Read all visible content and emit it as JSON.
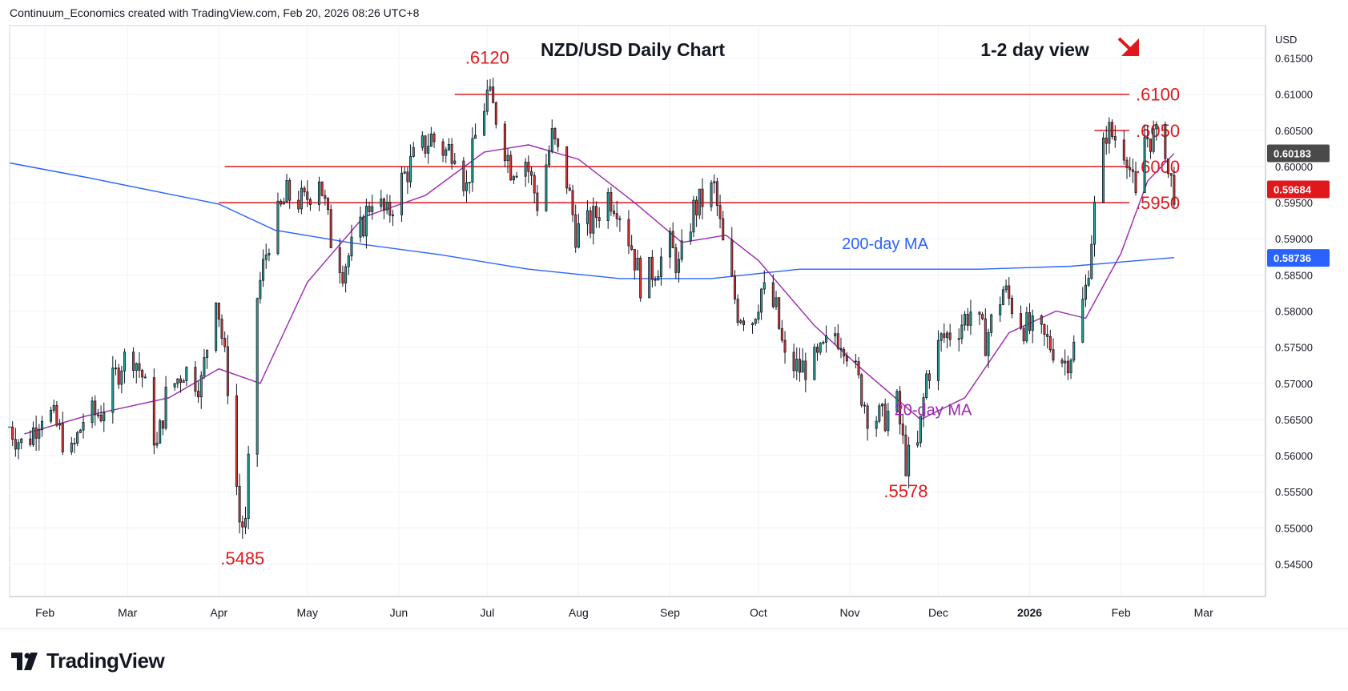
{
  "header": {
    "attribution": "Continuum_Economics created with TradingView.com, Feb 20, 2026 08:26 UTC+8"
  },
  "footer": {
    "brand": "TradingView"
  },
  "icons": {
    "brand_logo": "tradingview-logo-icon",
    "direction_arrow": "down-right-arrow-icon"
  },
  "colors": {
    "up": "#26a69a",
    "down": "#e53935",
    "level": "#e0181b",
    "ma200": "#2962ff",
    "ma20": "#9c27b0",
    "price_badge": "#e0181b",
    "ma_badge": "#2962ff",
    "ma20_badge": "#7b1fa2"
  },
  "chart_data": {
    "type": "candlestick",
    "title": "NZD/USD Daily Chart",
    "view": "1-2 day view",
    "currency": "USD",
    "x_ticks": [
      "Feb",
      "Mar",
      "Apr",
      "May",
      "Jun",
      "Jul",
      "Aug",
      "Sep",
      "Oct",
      "Nov",
      "Dec",
      "2026",
      "Feb",
      "Mar"
    ],
    "x_tick_dates": [
      "2025-02-01",
      "2025-03-01",
      "2025-04-01",
      "2025-05-01",
      "2025-06-01",
      "2025-07-01",
      "2025-08-01",
      "2025-09-01",
      "2025-10-01",
      "2025-11-01",
      "2025-12-01",
      "2026-01-01",
      "2026-02-01",
      "2026-03-01"
    ],
    "x_range": [
      "2025-01-20",
      "2026-03-22"
    ],
    "ylim": [
      0.5405,
      0.6195
    ],
    "y_ticks": [
      "0.61500",
      "0.61000",
      "0.60500",
      "0.60000",
      "0.59500",
      "0.59000",
      "0.58500",
      "0.58000",
      "0.57500",
      "0.57000",
      "0.56500",
      "0.56000",
      "0.55500",
      "0.55000",
      "0.54500"
    ],
    "levels": [
      {
        "label": ".6100",
        "value": 0.61,
        "from": "2025-06-20"
      },
      {
        "label": ".6050",
        "value": 0.605,
        "from": "2026-01-23"
      },
      {
        "label": ".6000",
        "value": 0.6,
        "from": "2025-04-03"
      },
      {
        "label": ".5950",
        "value": 0.595,
        "from": "2025-04-01"
      }
    ],
    "annotations": [
      {
        "label": ".6120",
        "date": "2025-07-01",
        "value": 0.612
      },
      {
        "label": ".5485",
        "date": "2025-04-09",
        "value": 0.5485
      },
      {
        "label": ".5578",
        "date": "2025-11-20",
        "value": 0.5578
      }
    ],
    "ma_labels": {
      "ma200": "200-day MA",
      "ma20": "20-day MA"
    },
    "price_badges": [
      {
        "label": "0.60183",
        "value": 0.60183,
        "series": "ma20"
      },
      {
        "label": "0.59684",
        "value": 0.59684,
        "series": "price"
      },
      {
        "label": "0.58736",
        "value": 0.58736,
        "series": "ma200"
      }
    ],
    "close_path": [
      [
        "2025-01-20",
        0.564
      ],
      [
        "2025-01-25",
        0.561
      ],
      [
        "2025-02-01",
        0.567
      ],
      [
        "2025-02-05",
        0.564
      ],
      [
        "2025-02-10",
        0.56
      ],
      [
        "2025-02-14",
        0.565
      ],
      [
        "2025-02-20",
        0.566
      ],
      [
        "2025-02-27",
        0.573
      ],
      [
        "2025-03-03",
        0.574
      ],
      [
        "2025-03-06",
        0.571
      ],
      [
        "2025-03-11",
        0.561
      ],
      [
        "2025-03-14",
        0.568
      ],
      [
        "2025-03-20",
        0.572
      ],
      [
        "2025-03-26",
        0.57
      ],
      [
        "2025-03-31",
        0.583
      ],
      [
        "2025-04-04",
        0.57
      ],
      [
        "2025-04-08",
        0.551
      ],
      [
        "2025-04-10",
        0.55
      ],
      [
        "2025-04-14",
        0.582
      ],
      [
        "2025-04-18",
        0.59
      ],
      [
        "2025-04-24",
        0.596
      ],
      [
        "2025-04-30",
        0.595
      ],
      [
        "2025-05-05",
        0.599
      ],
      [
        "2025-05-09",
        0.59
      ],
      [
        "2025-05-13",
        0.586
      ],
      [
        "2025-05-19",
        0.591
      ],
      [
        "2025-05-23",
        0.596
      ],
      [
        "2025-05-28",
        0.593
      ],
      [
        "2025-06-02",
        0.598
      ],
      [
        "2025-06-06",
        0.601
      ],
      [
        "2025-06-12",
        0.604
      ],
      [
        "2025-06-17",
        0.602
      ],
      [
        "2025-06-20",
        0.603
      ],
      [
        "2025-06-24",
        0.597
      ],
      [
        "2025-06-27",
        0.604
      ],
      [
        "2025-07-01",
        0.61
      ],
      [
        "2025-07-04",
        0.607
      ],
      [
        "2025-07-09",
        0.6
      ],
      [
        "2025-07-14",
        0.601
      ],
      [
        "2025-07-18",
        0.595
      ],
      [
        "2025-07-23",
        0.604
      ],
      [
        "2025-07-28",
        0.598
      ],
      [
        "2025-07-31",
        0.591
      ],
      [
        "2025-08-05",
        0.592
      ],
      [
        "2025-08-11",
        0.596
      ],
      [
        "2025-08-14",
        0.595
      ],
      [
        "2025-08-19",
        0.589
      ],
      [
        "2025-08-22",
        0.584
      ],
      [
        "2025-08-27",
        0.586
      ],
      [
        "2025-09-01",
        0.589
      ],
      [
        "2025-09-04",
        0.586
      ],
      [
        "2025-09-09",
        0.594
      ],
      [
        "2025-09-16",
        0.597
      ],
      [
        "2025-09-19",
        0.589
      ],
      [
        "2025-09-24",
        0.58
      ],
      [
        "2025-09-29",
        0.579
      ],
      [
        "2025-10-02",
        0.583
      ],
      [
        "2025-10-07",
        0.58
      ],
      [
        "2025-10-10",
        0.573
      ],
      [
        "2025-10-15",
        0.572
      ],
      [
        "2025-10-21",
        0.573
      ],
      [
        "2025-10-27",
        0.577
      ],
      [
        "2025-10-30",
        0.576
      ],
      [
        "2025-11-04",
        0.57
      ],
      [
        "2025-11-07",
        0.566
      ],
      [
        "2025-11-12",
        0.565
      ],
      [
        "2025-11-17",
        0.567
      ],
      [
        "2025-11-20",
        0.559
      ],
      [
        "2025-11-24",
        0.561
      ],
      [
        "2025-11-27",
        0.571
      ],
      [
        "2025-12-02",
        0.576
      ],
      [
        "2025-12-08",
        0.578
      ],
      [
        "2025-12-12",
        0.58
      ],
      [
        "2025-12-17",
        0.576
      ],
      [
        "2025-12-23",
        0.583
      ],
      [
        "2025-12-30",
        0.578
      ],
      [
        "2026-01-06",
        0.576
      ],
      [
        "2026-01-09",
        0.575
      ],
      [
        "2026-01-13",
        0.573
      ],
      [
        "2026-01-16",
        0.575
      ],
      [
        "2026-01-20",
        0.583
      ],
      [
        "2026-01-23",
        0.594
      ],
      [
        "2026-01-27",
        0.605
      ],
      [
        "2026-01-30",
        0.604
      ],
      [
        "2026-02-03",
        0.602
      ],
      [
        "2026-02-06",
        0.595
      ],
      [
        "2026-02-09",
        0.604
      ],
      [
        "2026-02-12",
        0.604
      ],
      [
        "2026-02-16",
        0.603
      ],
      [
        "2026-02-17",
        0.599
      ],
      [
        "2026-02-19",
        0.5968
      ]
    ],
    "candle_extremes": [
      {
        "date": "2025-07-01",
        "high": 0.612
      },
      {
        "date": "2025-04-09",
        "low": 0.5485
      },
      {
        "date": "2025-11-20",
        "low": 0.5578
      }
    ],
    "ma200_path": [
      [
        "2025-01-20",
        0.6005
      ],
      [
        "2025-02-15",
        0.5985
      ],
      [
        "2025-03-15",
        0.5962
      ],
      [
        "2025-04-01",
        0.5948
      ],
      [
        "2025-04-20",
        0.5912
      ],
      [
        "2025-05-15",
        0.5895
      ],
      [
        "2025-06-15",
        0.5878
      ],
      [
        "2025-07-15",
        0.5858
      ],
      [
        "2025-08-15",
        0.5845
      ],
      [
        "2025-09-15",
        0.5845
      ],
      [
        "2025-10-15",
        0.5858
      ],
      [
        "2025-11-15",
        0.5858
      ],
      [
        "2025-12-15",
        0.5858
      ],
      [
        "2026-01-15",
        0.5862
      ],
      [
        "2026-02-19",
        0.5874
      ]
    ],
    "ma20_path": [
      [
        "2025-01-25",
        0.563
      ],
      [
        "2025-02-15",
        0.5655
      ],
      [
        "2025-03-15",
        0.568
      ],
      [
        "2025-04-01",
        0.572
      ],
      [
        "2025-04-15",
        0.57
      ],
      [
        "2025-05-01",
        0.584
      ],
      [
        "2025-05-20",
        0.593
      ],
      [
        "2025-06-10",
        0.596
      ],
      [
        "2025-06-30",
        0.602
      ],
      [
        "2025-07-15",
        0.603
      ],
      [
        "2025-08-01",
        0.601
      ],
      [
        "2025-08-20",
        0.595
      ],
      [
        "2025-09-05",
        0.5895
      ],
      [
        "2025-09-20",
        0.5905
      ],
      [
        "2025-10-01",
        0.587
      ],
      [
        "2025-10-20",
        0.578
      ],
      [
        "2025-11-05",
        0.572
      ],
      [
        "2025-11-25",
        0.565
      ],
      [
        "2025-12-10",
        0.568
      ],
      [
        "2025-12-25",
        0.577
      ],
      [
        "2026-01-10",
        0.58
      ],
      [
        "2026-01-20",
        0.579
      ],
      [
        "2026-02-01",
        0.588
      ],
      [
        "2026-02-10",
        0.598
      ],
      [
        "2026-02-19",
        0.6018
      ]
    ]
  }
}
